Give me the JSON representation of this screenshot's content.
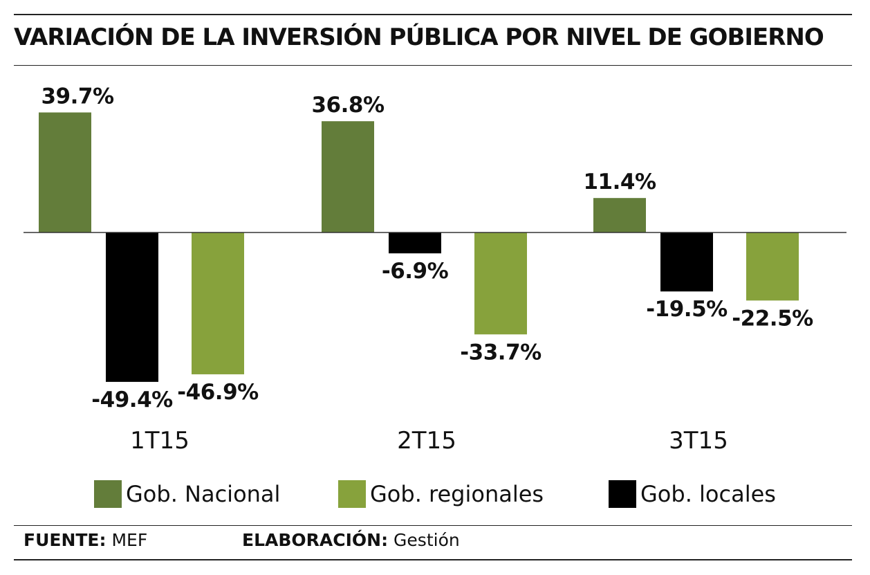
{
  "title": "VARIACIÓN DE LA INVERSIÓN PÚBLICA POR NIVEL DE GOBIERNO",
  "chart_data": {
    "type": "bar",
    "categories": [
      "1T15",
      "2T15",
      "3T15"
    ],
    "series": [
      {
        "name": "Gob. Nacional",
        "color": "#637d3a",
        "values": [
          39.7,
          36.8,
          11.4
        ],
        "labels": [
          "39.7%",
          "36.8%",
          "11.4%"
        ]
      },
      {
        "name": "Gob. locales",
        "color": "#000000",
        "values": [
          -49.4,
          -6.9,
          -19.5
        ],
        "labels": [
          "-49.4%",
          "-6.9%",
          "-19.5%"
        ]
      },
      {
        "name": "Gob. regionales",
        "color": "#87a23c",
        "values": [
          -46.9,
          -33.7,
          -22.5
        ],
        "labels": [
          "-46.9%",
          "-33.7%",
          "-22.5%"
        ]
      }
    ],
    "ylim": [
      -55,
      45
    ],
    "grid": false,
    "legend_position": "bottom"
  },
  "legend": [
    {
      "label": "Gob. Nacional",
      "color": "#637d3a"
    },
    {
      "label": "Gob. regionales",
      "color": "#87a23c"
    },
    {
      "label": "Gob. locales",
      "color": "#000000"
    }
  ],
  "footer": {
    "source_key": "FUENTE:",
    "source_value": "MEF",
    "credit_key": "ELABORACIÓN:",
    "credit_value": "Gestión"
  }
}
